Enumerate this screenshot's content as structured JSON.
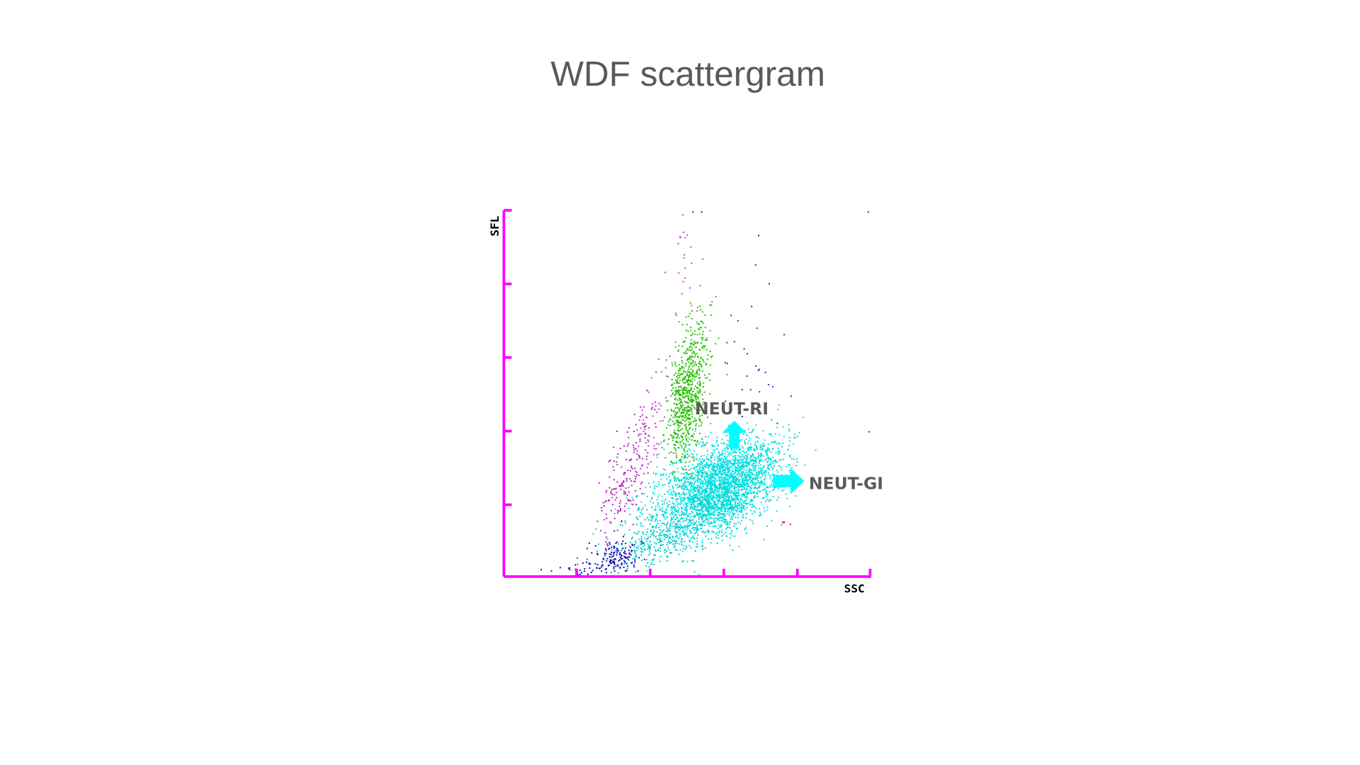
{
  "chart_data": {
    "type": "scatter",
    "title": "WDF scattergram",
    "x_label": "SSC",
    "y_label": "SFL",
    "annotations": [
      "NEUT-RI",
      "NEUT-GI"
    ]
  }
}
